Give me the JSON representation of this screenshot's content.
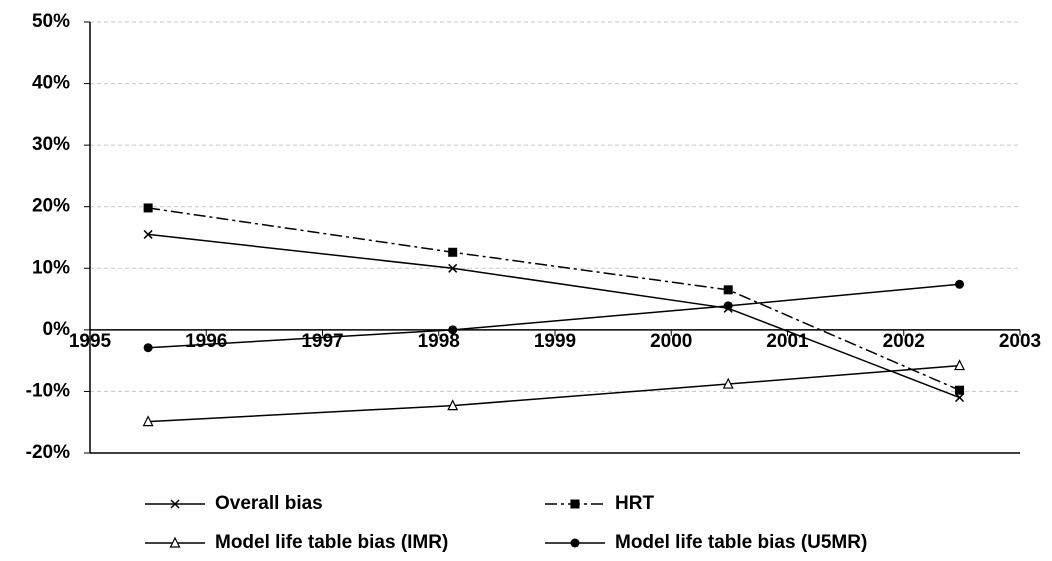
{
  "chart_data": {
    "type": "line",
    "x": [
      1995.5,
      1998.12,
      2000.49,
      2002.48
    ],
    "series": [
      {
        "name": "Overall bias",
        "color": "#000000",
        "marker": "x",
        "dash": "solid",
        "values": [
          15.5,
          10,
          3.5,
          -11
        ]
      },
      {
        "name": "HRT",
        "color": "#000000",
        "marker": "square",
        "dash": "dashdot",
        "values": [
          19.8,
          12.6,
          6.5,
          -9.8
        ]
      },
      {
        "name": "Model life table bias (IMR)",
        "color": "#000000",
        "marker": "triangle",
        "dash": "solid",
        "values": [
          -14.9,
          -12.3,
          -8.8,
          -5.8
        ]
      },
      {
        "name": "Model life table bias (U5MR)",
        "color": "#000000",
        "marker": "circle",
        "dash": "solid",
        "values": [
          -2.9,
          0,
          3.9,
          7.4
        ]
      }
    ],
    "xlim": [
      1995,
      2003
    ],
    "xticks": [
      1995,
      1996,
      1997,
      1998,
      1999,
      2000,
      2001,
      2002,
      2003
    ],
    "ylim": [
      -20,
      50
    ],
    "yticks": [
      {
        "value": -20,
        "label": "-20%"
      },
      {
        "value": -10,
        "label": "-10%"
      },
      {
        "value": 0,
        "label": "0%"
      },
      {
        "value": 10,
        "label": "10%"
      },
      {
        "value": 20,
        "label": "20%"
      },
      {
        "value": 30,
        "label": "30%"
      },
      {
        "value": 40,
        "label": "40%"
      },
      {
        "value": 50,
        "label": "50%"
      }
    ],
    "grid": true,
    "legend": "bottom"
  }
}
